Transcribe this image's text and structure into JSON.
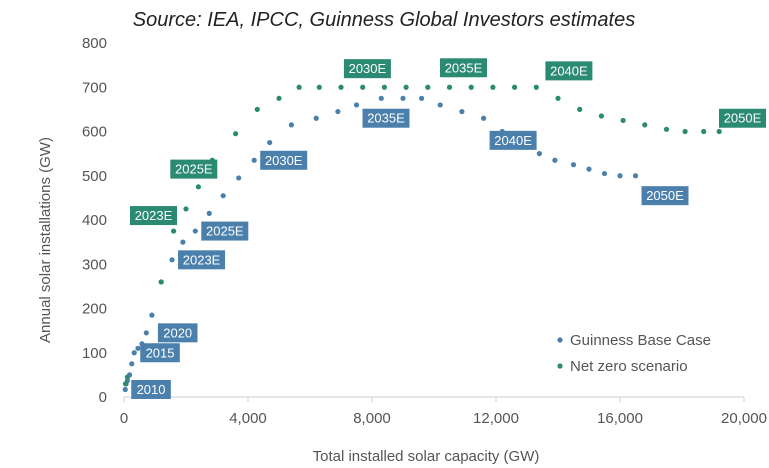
{
  "source_note": "Source: IEA, IPCC, Guinness Global Investors estimates",
  "colors": {
    "base": "#4a80ab",
    "netzero": "#2b8a72",
    "axis": "#cfcfcf"
  },
  "chart_data": {
    "type": "scatter",
    "xlabel": "Total installed solar capacity (GW)",
    "ylabel": "Annual solar installations (GW)",
    "xlim": [
      0,
      20000
    ],
    "ylim": [
      0,
      800
    ],
    "x_ticks": [
      0,
      4000,
      8000,
      12000,
      16000,
      20000
    ],
    "x_tick_labels": [
      "0",
      "4,000",
      "8,000",
      "12,000",
      "16,000",
      "20,000"
    ],
    "y_ticks": [
      0,
      100,
      200,
      300,
      400,
      500,
      600,
      700,
      800
    ],
    "y_tick_labels": [
      "0",
      "100",
      "200",
      "300",
      "400",
      "500",
      "600",
      "700",
      "800"
    ],
    "legend": {
      "placement": "bottom-right"
    },
    "grid": false,
    "series": [
      {
        "name": "Guinness Base Case",
        "color": "#4a80ab",
        "points": [
          [
            40,
            17
          ],
          [
            70,
            30
          ],
          [
            110,
            37
          ],
          [
            180,
            50
          ],
          [
            250,
            75
          ],
          [
            330,
            100
          ],
          [
            450,
            110
          ],
          [
            580,
            120
          ],
          [
            720,
            145
          ],
          [
            900,
            185
          ],
          [
            1200,
            260
          ],
          [
            1550,
            310
          ],
          [
            1900,
            350
          ],
          [
            2300,
            375
          ],
          [
            2750,
            415
          ],
          [
            3200,
            455
          ],
          [
            3700,
            495
          ],
          [
            4200,
            535
          ],
          [
            4700,
            575
          ],
          [
            5400,
            615
          ],
          [
            6200,
            630
          ],
          [
            6900,
            645
          ],
          [
            7500,
            660
          ],
          [
            8300,
            675
          ],
          [
            9000,
            675
          ],
          [
            9600,
            675
          ],
          [
            10200,
            660
          ],
          [
            10900,
            645
          ],
          [
            11600,
            630
          ],
          [
            12200,
            600
          ],
          [
            12800,
            575
          ],
          [
            13400,
            550
          ],
          [
            13900,
            535
          ],
          [
            14500,
            525
          ],
          [
            15000,
            515
          ],
          [
            15500,
            505
          ],
          [
            16000,
            500
          ],
          [
            16500,
            500
          ]
        ],
        "labels": [
          {
            "text": "2010",
            "x": 40,
            "y": 17
          },
          {
            "text": "2015",
            "x": 330,
            "y": 100
          },
          {
            "text": "2020",
            "x": 900,
            "y": 145
          },
          {
            "text": "2023E",
            "x": 1550,
            "y": 310
          },
          {
            "text": "2025E",
            "x": 2300,
            "y": 375
          },
          {
            "text": "2030E",
            "x": 4200,
            "y": 535
          },
          {
            "text": "2035E",
            "x": 7500,
            "y": 630
          },
          {
            "text": "2040E",
            "x": 11600,
            "y": 580
          },
          {
            "text": "2050E",
            "x": 16500,
            "y": 455
          }
        ]
      },
      {
        "name": "Net zero scenario",
        "color": "#2b8a72",
        "points": [
          [
            50,
            30
          ],
          [
            110,
            45
          ],
          [
            1200,
            260
          ],
          [
            1600,
            375
          ],
          [
            2000,
            425
          ],
          [
            2400,
            475
          ],
          [
            2850,
            535
          ],
          [
            3600,
            595
          ],
          [
            4300,
            650
          ],
          [
            5000,
            675
          ],
          [
            5650,
            700
          ],
          [
            6300,
            700
          ],
          [
            7000,
            700
          ],
          [
            7700,
            700
          ],
          [
            8400,
            700
          ],
          [
            9100,
            700
          ],
          [
            9800,
            700
          ],
          [
            10500,
            700
          ],
          [
            11200,
            700
          ],
          [
            11900,
            700
          ],
          [
            12600,
            700
          ],
          [
            13300,
            700
          ],
          [
            14000,
            675
          ],
          [
            14700,
            650
          ],
          [
            15400,
            635
          ],
          [
            16100,
            625
          ],
          [
            16800,
            615
          ],
          [
            17500,
            605
          ],
          [
            18100,
            600
          ],
          [
            18700,
            600
          ],
          [
            19200,
            600
          ]
        ],
        "labels": [
          {
            "text": "2023E",
            "x": 0,
            "y": 410
          },
          {
            "text": "2025E",
            "x": 1300,
            "y": 515
          },
          {
            "text": "2030E",
            "x": 6900,
            "y": 742
          },
          {
            "text": "2035E",
            "x": 10000,
            "y": 744
          },
          {
            "text": "2040E",
            "x": 13400,
            "y": 737
          },
          {
            "text": "2050E",
            "x": 20400,
            "y": 630
          }
        ]
      }
    ]
  }
}
